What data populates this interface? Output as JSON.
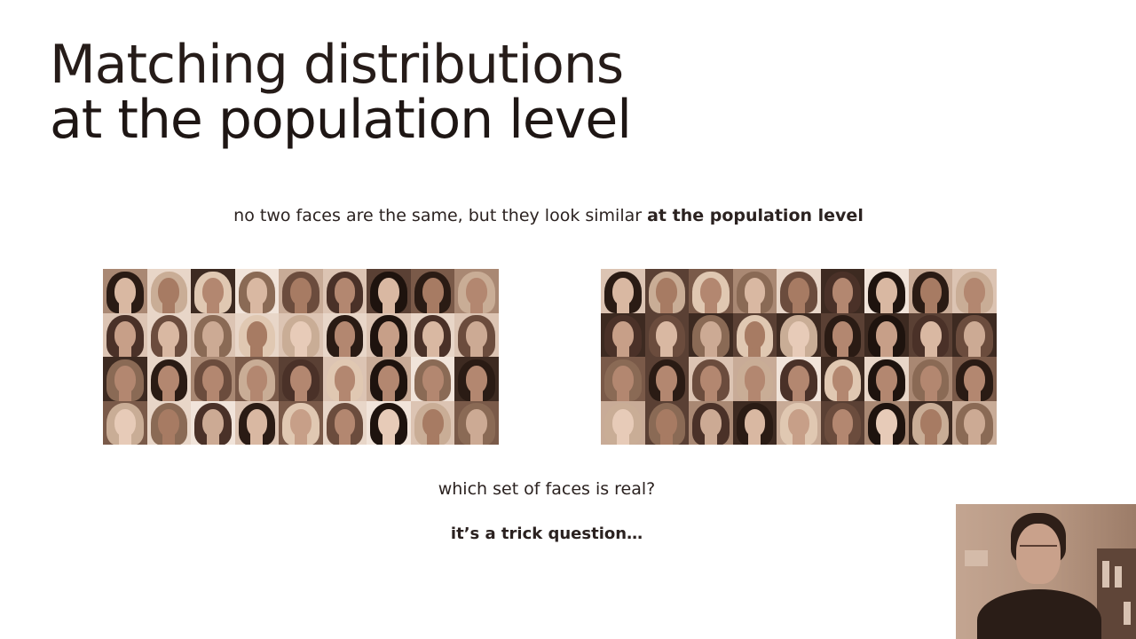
{
  "slide": {
    "title_line1": "Matching distributions",
    "title_line2": "at the population level",
    "subtitle_plain": "no two faces are the same, but they look similar ",
    "subtitle_bold": "at the population level",
    "question": "which set of faces is real?",
    "answer": "it’s a trick question…"
  },
  "colors": {
    "title": "#261c19",
    "text": "#2b2220",
    "sepia_dark": "#2e1f18",
    "sepia_light": "#e4cdbd"
  },
  "face_sets": {
    "left_rows": 4,
    "left_cols": 9,
    "right_rows": 4,
    "right_cols": 9
  }
}
